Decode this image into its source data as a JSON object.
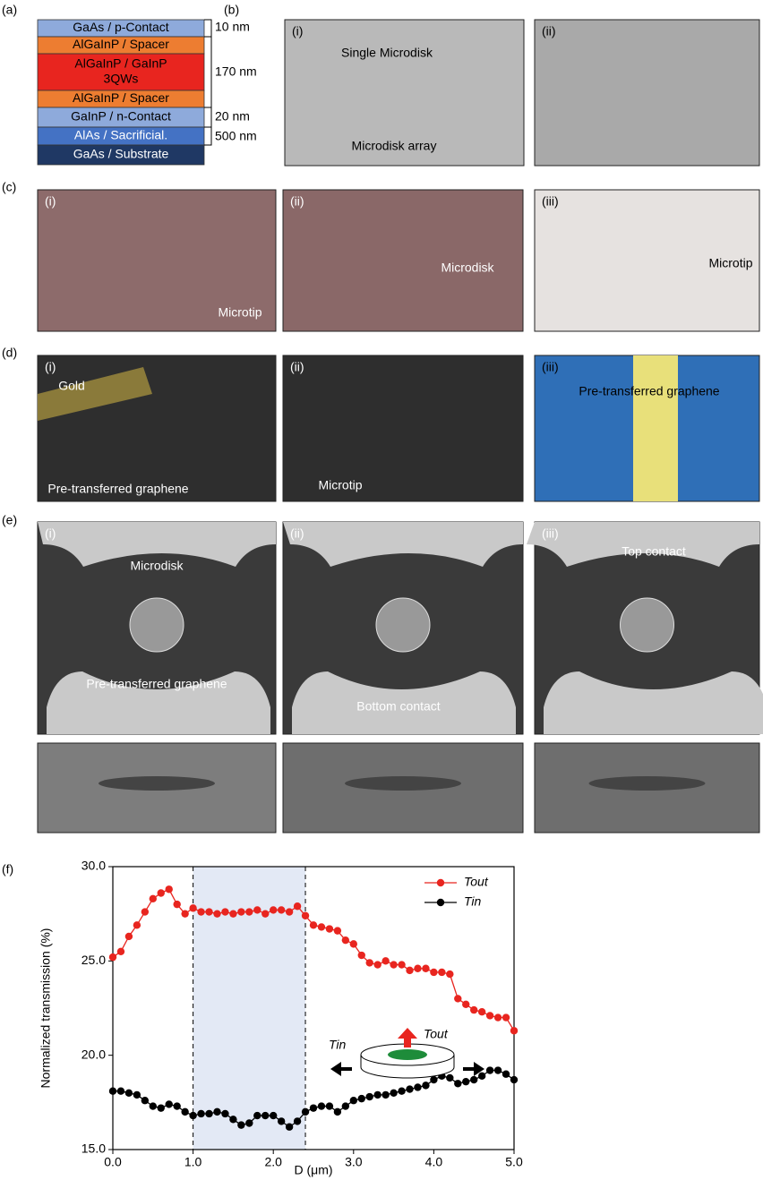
{
  "panel_labels": [
    "(a)",
    "(b)",
    "(c)",
    "(d)",
    "(e)",
    "(f)"
  ],
  "layer_stack": {
    "layers": [
      "GaAs / p-Contact",
      "AlGaInP / Spacer",
      "AlGaInP / GaInP",
      "3QWs",
      "AlGaInP / Spacer",
      "GaInP / n-Contact",
      "AlAs / Sacrificial.",
      "GaAs / Substrate"
    ],
    "thickness_labels": [
      "10 nm",
      "170 nm",
      "20 nm",
      "500 nm"
    ]
  },
  "images": [
    {
      "label": "(i)",
      "texts": [
        "Single Microdisk",
        "Microdisk array"
      ]
    },
    {
      "label": "(ii)",
      "texts": []
    },
    {
      "label": "(i)",
      "texts": [
        "Microtip"
      ]
    },
    {
      "label": "(ii)",
      "texts": [
        "Microdisk"
      ]
    },
    {
      "label": "(iii)",
      "texts": [
        "Microtip"
      ]
    },
    {
      "label": "(i)",
      "texts": [
        "Gold",
        "Pre-transferred graphene"
      ]
    },
    {
      "label": "(ii)",
      "texts": [
        "Microtip"
      ]
    },
    {
      "label": "(iii)",
      "texts": [
        "Pre-transferred graphene"
      ]
    },
    {
      "label": "(i)",
      "texts": [
        "Microdisk",
        "Pre-transferred graphene"
      ]
    },
    {
      "label": "(ii)",
      "texts": [
        "Bottom contact"
      ]
    },
    {
      "label": "(iii)",
      "texts": [
        "Top contact"
      ]
    }
  ],
  "chart_data": {
    "type": "line",
    "x_label": "D (μm)",
    "y_label": "Normalized transmission (%)",
    "x": [
      0,
      0.1,
      0.2,
      0.3,
      0.4,
      0.5,
      0.6,
      0.7,
      0.8,
      0.9,
      1,
      1.1,
      1.2,
      1.3,
      1.4,
      1.5,
      1.6,
      1.7,
      1.8,
      1.9,
      2,
      2.1,
      2.2,
      2.3,
      2.4,
      2.5,
      2.6,
      2.7,
      2.8,
      2.9,
      3,
      3.1,
      3.2,
      3.3,
      3.4,
      3.5,
      3.6,
      3.7,
      3.8,
      3.9,
      4,
      4.1,
      4.2,
      4.3,
      4.4,
      4.5,
      4.6,
      4.7,
      4.8,
      4.9,
      5
    ],
    "series": [
      {
        "name": "Tout",
        "color": "#e8251f",
        "values": [
          25.2,
          25.5,
          26.3,
          26.9,
          27.6,
          28.3,
          28.6,
          28.8,
          28.0,
          27.5,
          27.8,
          27.6,
          27.6,
          27.5,
          27.6,
          27.5,
          27.6,
          27.6,
          27.7,
          27.5,
          27.7,
          27.7,
          27.6,
          27.9,
          27.4,
          26.9,
          26.8,
          26.7,
          26.6,
          26.1,
          25.9,
          25.3,
          24.9,
          24.8,
          25.0,
          24.8,
          24.8,
          24.5,
          24.6,
          24.6,
          24.4,
          24.4,
          24.3,
          23.0,
          22.7,
          22.4,
          22.3,
          22.1,
          22.0,
          22.0,
          21.3
        ]
      },
      {
        "name": "Tin",
        "color": "#000000",
        "values": [
          18.1,
          18.1,
          18.0,
          17.9,
          17.6,
          17.3,
          17.2,
          17.4,
          17.3,
          17.0,
          16.8,
          16.9,
          16.9,
          17.0,
          16.9,
          16.6,
          16.3,
          16.4,
          16.8,
          16.8,
          16.8,
          16.5,
          16.2,
          16.5,
          17.0,
          17.2,
          17.3,
          17.3,
          17.0,
          17.3,
          17.6,
          17.7,
          17.8,
          17.9,
          17.9,
          18.0,
          18.1,
          18.2,
          18.3,
          18.4,
          18.7,
          18.9,
          18.8,
          18.5,
          18.6,
          18.7,
          18.9,
          19.2,
          19.2,
          19.0,
          18.7
        ]
      }
    ],
    "highlight": [
      1.0,
      2.4
    ],
    "xlim": [
      0,
      5
    ],
    "ylim": [
      15,
      30
    ],
    "xticks": [
      {
        "value": 0,
        "label": "0.0"
      },
      {
        "value": 1,
        "label": "1.0"
      },
      {
        "value": 2,
        "label": "2.0"
      },
      {
        "value": 3,
        "label": "3.0"
      },
      {
        "value": 4,
        "label": "4.0"
      },
      {
        "value": 5,
        "label": "5.0"
      }
    ],
    "yticks": [
      {
        "value": 15,
        "label": "15.0"
      },
      {
        "value": 20,
        "label": "20.0"
      },
      {
        "value": 25,
        "label": "25.0"
      },
      {
        "value": 30,
        "label": "30.0"
      }
    ],
    "legend": "upper right"
  }
}
